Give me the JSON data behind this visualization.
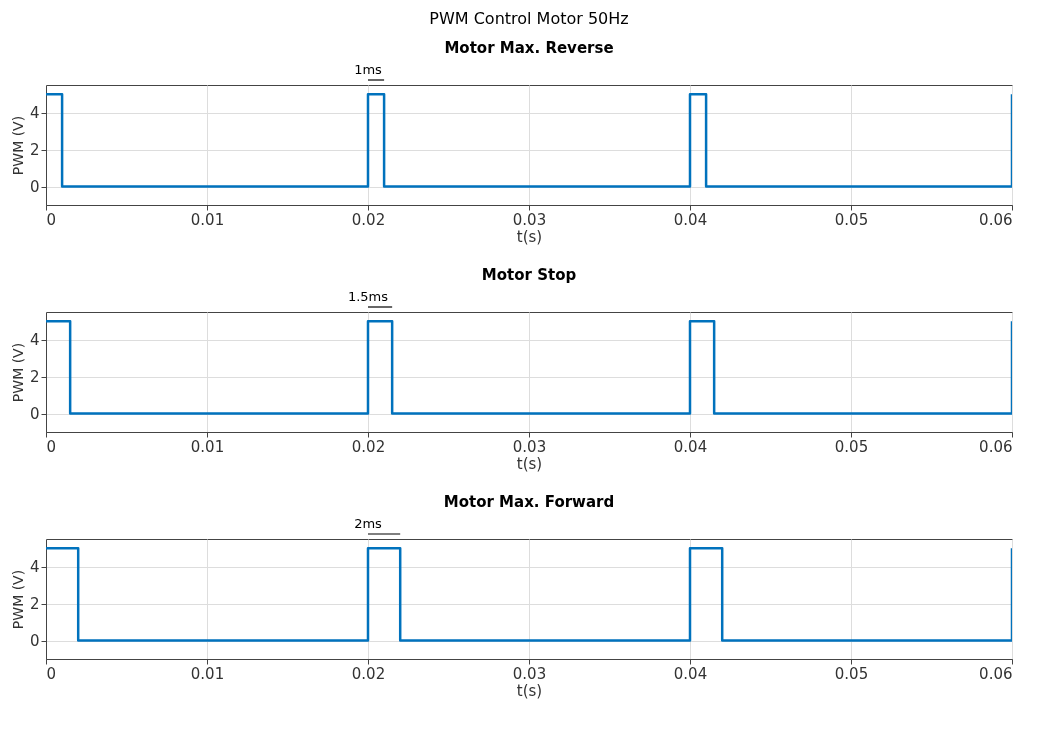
{
  "chart_data": [
    {
      "type": "step",
      "title": "PWM Control Motor 50Hz",
      "subtitle": "Motor Max. Reverse",
      "xlabel": "t(s)",
      "ylabel": "PWM (V)",
      "x": [
        0,
        0.001,
        0.02,
        0.021,
        0.04,
        0.041,
        0.06
      ],
      "series": [
        {
          "color": "#0072bd",
          "values": [
            5,
            0,
            5,
            0,
            5,
            0,
            5
          ]
        }
      ],
      "xlim": [
        0,
        0.06
      ],
      "xticks": [
        0,
        0.01,
        0.02,
        0.03,
        0.04,
        0.05,
        0.06
      ],
      "ylim": [
        -1,
        5.5
      ],
      "yticks": [
        0,
        2,
        4
      ],
      "grid": true,
      "annotations": [
        "1ms"
      ]
    },
    {
      "type": "step",
      "title": "Motor Stop",
      "xlabel": "t(s)",
      "ylabel": "PWM (V)",
      "x": [
        0,
        0.0015,
        0.02,
        0.0215,
        0.04,
        0.0415,
        0.06
      ],
      "series": [
        {
          "color": "#0072bd",
          "values": [
            5,
            0,
            5,
            0,
            5,
            0,
            5
          ]
        }
      ],
      "xlim": [
        0,
        0.06
      ],
      "xticks": [
        0,
        0.01,
        0.02,
        0.03,
        0.04,
        0.05,
        0.06
      ],
      "ylim": [
        -1,
        5.5
      ],
      "yticks": [
        0,
        2,
        4
      ],
      "grid": true,
      "annotations": [
        "1.5ms"
      ]
    },
    {
      "type": "step",
      "title": "Motor Max. Forward",
      "xlabel": "t(s)",
      "ylabel": "PWM (V)",
      "x": [
        0,
        0.002,
        0.02,
        0.022,
        0.04,
        0.042,
        0.06
      ],
      "series": [
        {
          "color": "#0072bd",
          "values": [
            5,
            0,
            5,
            0,
            5,
            0,
            5
          ]
        }
      ],
      "xlim": [
        0,
        0.06
      ],
      "xticks": [
        0,
        0.01,
        0.02,
        0.03,
        0.04,
        0.05,
        0.06
      ],
      "ylim": [
        -1,
        5.5
      ],
      "yticks": [
        0,
        2,
        4
      ],
      "grid": true,
      "annotations": [
        "2ms"
      ]
    }
  ]
}
